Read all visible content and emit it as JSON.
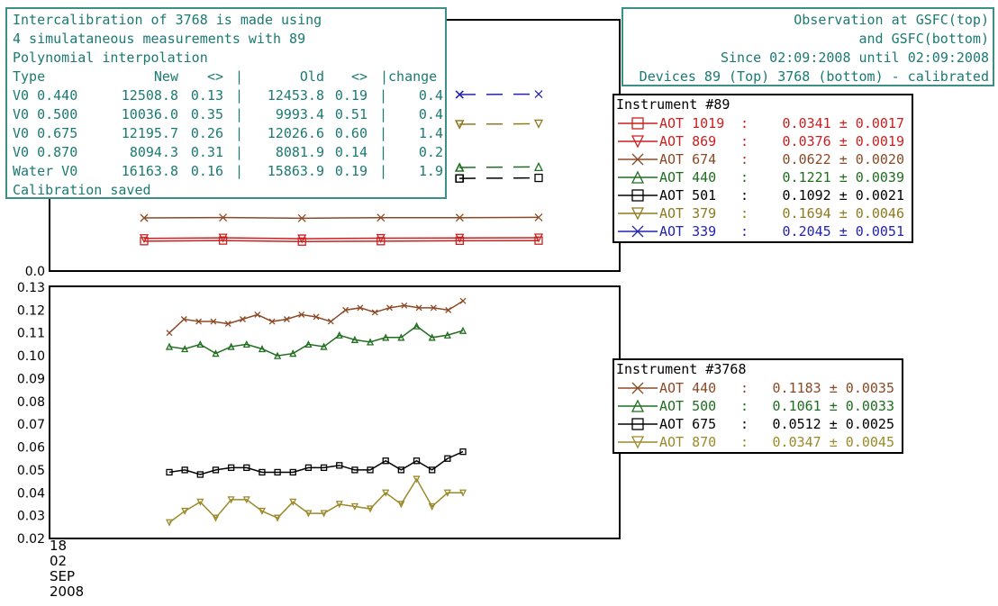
{
  "calibration_box": {
    "lines": [
      "Intercalibration of 3768 is made using",
      "4 simulataneous measurements with 89",
      "Polynomial interpolation"
    ],
    "table_header": [
      "Type",
      "New",
      "<>",
      "|",
      "Old",
      "<>",
      "|change"
    ],
    "table_rows": [
      {
        "type": "V0 0.440",
        "new": "12508.8",
        "new_dev": "0.13",
        "old": "12453.8",
        "old_dev": "0.19",
        "change": "0.4"
      },
      {
        "type": "V0 0.500",
        "new": "10036.0",
        "new_dev": "0.35",
        "old": "9993.4",
        "old_dev": "0.51",
        "change": "0.4"
      },
      {
        "type": "V0 0.675",
        "new": "12195.7",
        "new_dev": "0.26",
        "old": "12026.6",
        "old_dev": "0.60",
        "change": "1.4"
      },
      {
        "type": "V0 0.870",
        "new": "8094.3",
        "new_dev": "0.31",
        "old": "8081.9",
        "old_dev": "0.14",
        "change": "0.2"
      },
      {
        "type": "Water V0",
        "new": "16163.8",
        "new_dev": "0.16",
        "old": "15863.9",
        "old_dev": "0.19",
        "change": "1.9"
      }
    ],
    "footer": "Calibration saved"
  },
  "observation_box": {
    "lines": [
      "Observation at GSFC(top)",
      "and GSFC(bottom)",
      "Since 02:09:2008 until 02:09:2008",
      "Devices 89 (Top) 3768 (bottom) - calibrated"
    ]
  },
  "chart_data": [
    {
      "type": "line",
      "legend_title": "Instrument #89",
      "y_tick_labels": [
        "0.0"
      ],
      "series": [
        {
          "name": "AOT 1019",
          "value": "0.0341 ± 0.0017",
          "color": "#cc1f1f",
          "marker": "square",
          "x": [
            1,
            2,
            3,
            4,
            5,
            6
          ],
          "y": [
            0.0341,
            0.0349,
            0.0336,
            0.0341,
            0.0346,
            0.0348
          ]
        },
        {
          "name": "AOT 869",
          "value": "0.0376 ± 0.0019",
          "color": "#cc1f1f",
          "marker": "triangle-down",
          "x": [
            1,
            2,
            3,
            4,
            5,
            6
          ],
          "y": [
            0.0376,
            0.0383,
            0.0372,
            0.0378,
            0.0381,
            0.0384
          ]
        },
        {
          "name": "AOT 674",
          "value": "0.0622 ± 0.0020",
          "color": "#8b4a26",
          "marker": "x",
          "x": [
            1,
            2,
            3,
            4,
            5,
            6
          ],
          "y": [
            0.0622,
            0.0636,
            0.0611,
            0.0632,
            0.0632,
            0.0642
          ]
        },
        {
          "name": "AOT 440",
          "value": "0.1221 ± 0.0039",
          "color": "#1f6e1f",
          "marker": "triangle-up",
          "x": [
            5,
            6
          ],
          "y": [
            0.1221,
            0.1228
          ]
        },
        {
          "name": "AOT 501",
          "value": "0.1092 ± 0.0021",
          "color": "#000000",
          "marker": "square",
          "x": [
            5,
            6
          ],
          "y": [
            0.1092,
            0.1098
          ]
        },
        {
          "name": "AOT 379",
          "value": "0.1694 ± 0.0046",
          "color": "#8f7a1f",
          "marker": "triangle-down",
          "x": [
            5,
            6
          ],
          "y": [
            0.1694,
            0.17
          ]
        },
        {
          "name": "AOT 339",
          "value": "0.2045 ± 0.0051",
          "color": "#2323b0",
          "marker": "x",
          "x": [
            5,
            6
          ],
          "y": [
            0.2045,
            0.205
          ]
        }
      ]
    },
    {
      "type": "line",
      "legend_title": "Instrument #3768",
      "y_tick_labels": [
        "0.13",
        "0.12",
        "0.11",
        "0.10",
        "0.09",
        "0.08",
        "0.07",
        "0.06",
        "0.05",
        "0.04",
        "0.03",
        "0.02"
      ],
      "ylim": [
        0.02,
        0.13
      ],
      "x_date_label": [
        "18",
        "02",
        "SEP",
        "2008"
      ],
      "series": [
        {
          "name": "AOT 440",
          "value": "0.1183 ± 0.0035",
          "color": "#8b4a26",
          "marker": "x",
          "y": [
            0.11,
            0.116,
            0.115,
            0.115,
            0.114,
            0.116,
            0.118,
            0.115,
            0.116,
            0.118,
            0.117,
            0.115,
            0.12,
            0.121,
            0.119,
            0.121,
            0.122,
            0.121,
            0.121,
            0.12,
            0.124
          ]
        },
        {
          "name": "AOT 500",
          "value": "0.1061 ± 0.0033",
          "color": "#1f6e1f",
          "marker": "triangle-up",
          "y": [
            0.104,
            0.103,
            0.105,
            0.101,
            0.104,
            0.105,
            0.103,
            0.1,
            0.101,
            0.105,
            0.104,
            0.109,
            0.107,
            0.106,
            0.108,
            0.108,
            0.113,
            0.108,
            0.109,
            0.111
          ]
        },
        {
          "name": "AOT 675",
          "value": "0.0512 ± 0.0025",
          "color": "#000000",
          "marker": "square",
          "y": [
            0.049,
            0.05,
            0.048,
            0.05,
            0.051,
            0.051,
            0.049,
            0.049,
            0.049,
            0.051,
            0.051,
            0.052,
            0.05,
            0.05,
            0.054,
            0.05,
            0.054,
            0.05,
            0.055,
            0.058
          ]
        },
        {
          "name": "AOT 870",
          "value": "0.0347 ± 0.0045",
          "color": "#9b8a2a",
          "marker": "triangle-down",
          "y": [
            0.027,
            0.032,
            0.036,
            0.029,
            0.037,
            0.037,
            0.032,
            0.029,
            0.036,
            0.031,
            0.031,
            0.035,
            0.034,
            0.033,
            0.04,
            0.035,
            0.046,
            0.034,
            0.04,
            0.04
          ]
        }
      ]
    }
  ]
}
